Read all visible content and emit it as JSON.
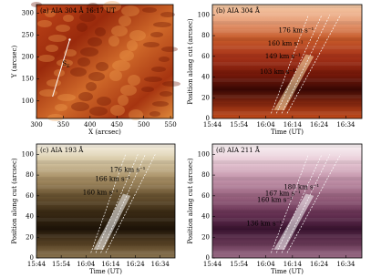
{
  "chart_data": [
    {
      "type": "image",
      "title": "(a) AIA 304 Å 16:17 UT",
      "x_label": "X (arcsec)",
      "y_label": "Y (arcsec)",
      "xlim": [
        300,
        555
      ],
      "xticks": [
        300,
        350,
        400,
        450,
        500,
        550
      ],
      "ylim": [
        60,
        320
      ],
      "yticks": [
        100,
        150,
        200,
        250,
        300
      ],
      "annotations": [
        {
          "text": "S",
          "subscript": "E"
        }
      ]
    },
    {
      "type": "image",
      "title": "(b) AIA 304 Å",
      "x_label": "Time (UT)",
      "y_label": "Position along cut (arcsec)",
      "xlim": [
        944,
        1000
      ],
      "xticks": [
        {
          "value": 944,
          "label": "15:44"
        },
        {
          "value": 954,
          "label": "15:54"
        },
        {
          "value": 964,
          "label": "16:04"
        },
        {
          "value": 974,
          "label": "16:14"
        },
        {
          "value": 984,
          "label": "16:24"
        },
        {
          "value": 994,
          "label": "16:34"
        }
      ],
      "ylim": [
        0,
        110
      ],
      "yticks": [
        0,
        20,
        40,
        60,
        80,
        100
      ],
      "annotations": [
        "176 km s⁻¹",
        "160 km s⁻¹",
        "149 km s⁻¹",
        "103 km s⁻¹"
      ]
    },
    {
      "type": "image",
      "title": "(c) AIA 193 Å",
      "x_label": "Time (UT)",
      "y_label": "Position along cut (arcsec)",
      "xlim": [
        944,
        1000
      ],
      "xticks": [
        {
          "value": 944,
          "label": "15:44"
        },
        {
          "value": 954,
          "label": "15:54"
        },
        {
          "value": 964,
          "label": "16:04"
        },
        {
          "value": 974,
          "label": "16:14"
        },
        {
          "value": 984,
          "label": "16:24"
        },
        {
          "value": 994,
          "label": "16:34"
        }
      ],
      "ylim": [
        0,
        110
      ],
      "yticks": [
        0,
        20,
        40,
        60,
        80,
        100
      ],
      "annotations": [
        "176 km s⁻¹",
        "166 km s⁻¹",
        "160 km s⁻¹"
      ]
    },
    {
      "type": "image",
      "title": "(d) AIA 211 Å",
      "x_label": "Time (UT)",
      "y_label": "Position along cut (arcsec)",
      "xlim": [
        944,
        1000
      ],
      "xticks": [
        {
          "value": 944,
          "label": "15:44"
        },
        {
          "value": 954,
          "label": "15:54"
        },
        {
          "value": 964,
          "label": "16:04"
        },
        {
          "value": 974,
          "label": "16:14"
        },
        {
          "value": 984,
          "label": "16:24"
        },
        {
          "value": 994,
          "label": "16:34"
        }
      ],
      "ylim": [
        0,
        110
      ],
      "yticks": [
        0,
        20,
        40,
        60,
        80,
        100
      ],
      "annotations": [
        "180 km s⁻¹",
        "167 km s⁻¹",
        "160 km s⁻¹",
        "136 km s⁻¹"
      ]
    }
  ]
}
